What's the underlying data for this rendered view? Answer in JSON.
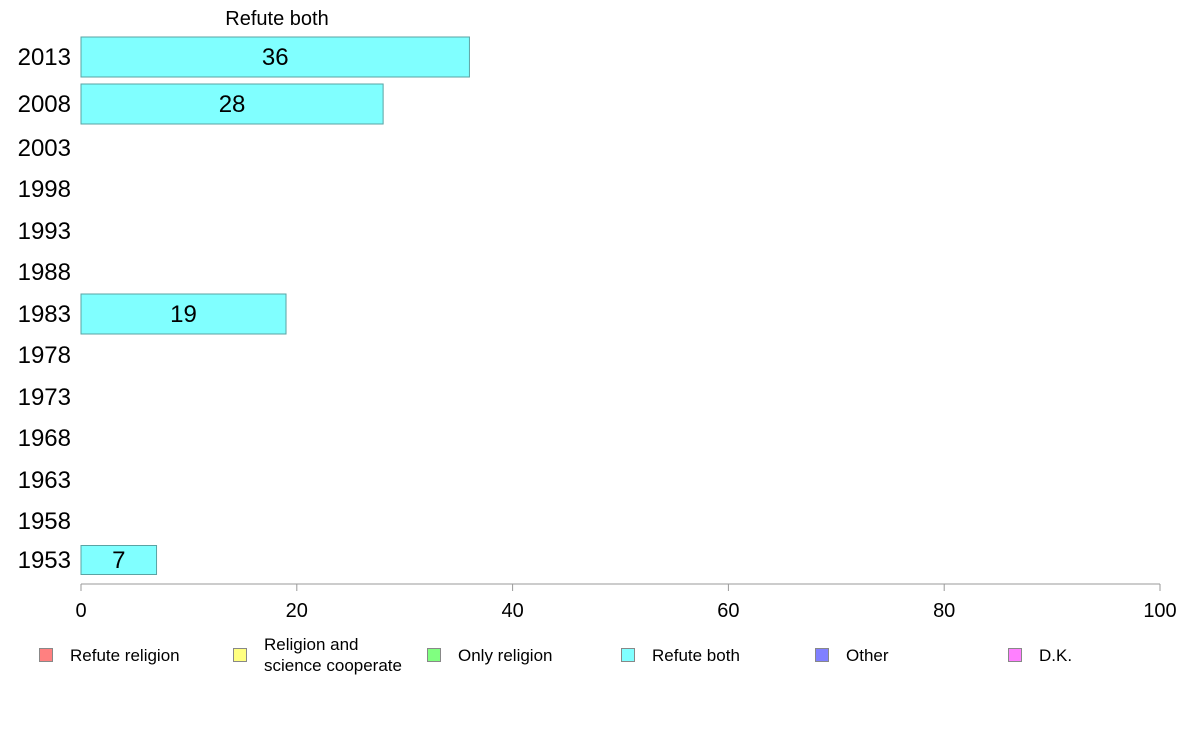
{
  "chart_data": {
    "type": "bar",
    "orientation": "horizontal",
    "title": "Refute both",
    "categories": [
      "2013",
      "2008",
      "2003",
      "1998",
      "1993",
      "1988",
      "1983",
      "1978",
      "1973",
      "1968",
      "1963",
      "1958",
      "1953"
    ],
    "series": [
      {
        "name": "Refute both",
        "color": "#80ffff",
        "values": [
          36,
          28,
          null,
          null,
          null,
          null,
          19,
          null,
          null,
          null,
          null,
          null,
          7
        ],
        "labels": [
          "36",
          "28",
          "",
          "",
          "",
          "",
          "19",
          "",
          "",
          "",
          "",
          "",
          "7"
        ]
      }
    ],
    "xlim": [
      0,
      100
    ],
    "xticks": [
      0,
      20,
      40,
      60,
      80,
      100
    ],
    "xtick_labels": [
      "0",
      "20",
      "40",
      "60",
      "80",
      "100"
    ],
    "grid": false,
    "legend_position": "bottom"
  },
  "legend": {
    "items": [
      {
        "label": "Refute religion",
        "color": "#ff8080"
      },
      {
        "label": "Religion and\nscience cooperate",
        "color": "#ffff80"
      },
      {
        "label": "Only religion",
        "color": "#80ff80"
      },
      {
        "label": "Refute both",
        "color": "#80ffff"
      },
      {
        "label": "Other",
        "color": "#8080ff"
      },
      {
        "label": "D.K.",
        "color": "#ff80ff"
      }
    ]
  }
}
